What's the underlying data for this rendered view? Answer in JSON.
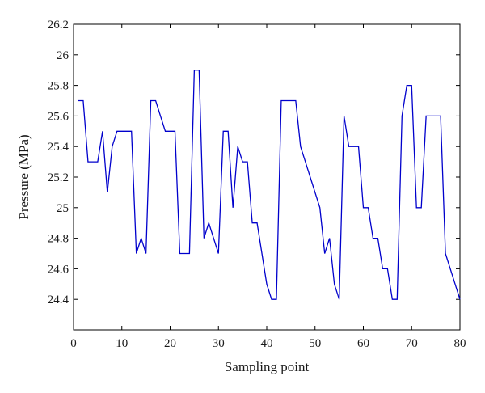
{
  "chart_data": {
    "type": "line",
    "title": "",
    "xlabel": "Sampling point",
    "ylabel": "Pressure (MPa)",
    "xlim": [
      0,
      80
    ],
    "ylim": [
      24.2,
      26.2
    ],
    "xticks": [
      0,
      10,
      20,
      30,
      40,
      50,
      60,
      70,
      80
    ],
    "xtick_labels": [
      "0",
      "10",
      "20",
      "30",
      "40",
      "50",
      "60",
      "70",
      "80"
    ],
    "yticks": [
      24.4,
      24.6,
      24.8,
      25,
      25.2,
      25.4,
      25.6,
      25.8,
      26,
      26.2
    ],
    "ytick_labels": [
      "24.4",
      "24.6",
      "24.8",
      "25",
      "25.2",
      "25.4",
      "25.6",
      "25.8",
      "26",
      "26.2"
    ],
    "grid": false,
    "line_color": "#0000cc",
    "series": [
      {
        "x": [
          1,
          2,
          3,
          4,
          5,
          6,
          7,
          8,
          9,
          10,
          11,
          12,
          13,
          14,
          15,
          16,
          17,
          18,
          19,
          20,
          21,
          22,
          23,
          24,
          25,
          26,
          27,
          28,
          29,
          30,
          31,
          32,
          33,
          34,
          35,
          36,
          37,
          38,
          39,
          40,
          41,
          42,
          43,
          44,
          45,
          46,
          47,
          48,
          49,
          50,
          51,
          52,
          53,
          54,
          55,
          56,
          57,
          58,
          59,
          60,
          61,
          62,
          63,
          64,
          65,
          66,
          67,
          68,
          69,
          70,
          71,
          72,
          73,
          74,
          75,
          76,
          77,
          78,
          79,
          80
        ],
        "y": [
          25.7,
          25.7,
          25.3,
          25.3,
          25.3,
          25.5,
          25.1,
          25.4,
          25.5,
          25.5,
          25.5,
          25.5,
          24.7,
          24.8,
          24.7,
          25.7,
          25.7,
          25.6,
          25.5,
          25.5,
          25.5,
          24.7,
          24.7,
          24.7,
          25.9,
          25.9,
          24.8,
          24.9,
          24.8,
          24.7,
          25.5,
          25.5,
          25.0,
          25.4,
          25.3,
          25.3,
          24.9,
          24.9,
          24.7,
          24.5,
          24.4,
          24.4,
          25.7,
          25.7,
          25.7,
          25.7,
          25.4,
          25.3,
          25.2,
          25.1,
          25.0,
          24.7,
          24.8,
          24.5,
          24.4,
          25.6,
          25.4,
          25.4,
          25.4,
          25.0,
          25.0,
          24.8,
          24.8,
          24.6,
          24.6,
          24.4,
          24.4,
          25.6,
          25.8,
          25.8,
          25.0,
          25.0,
          25.6,
          25.6,
          25.6,
          25.6,
          24.7,
          24.6,
          24.5,
          24.4
        ]
      }
    ]
  }
}
